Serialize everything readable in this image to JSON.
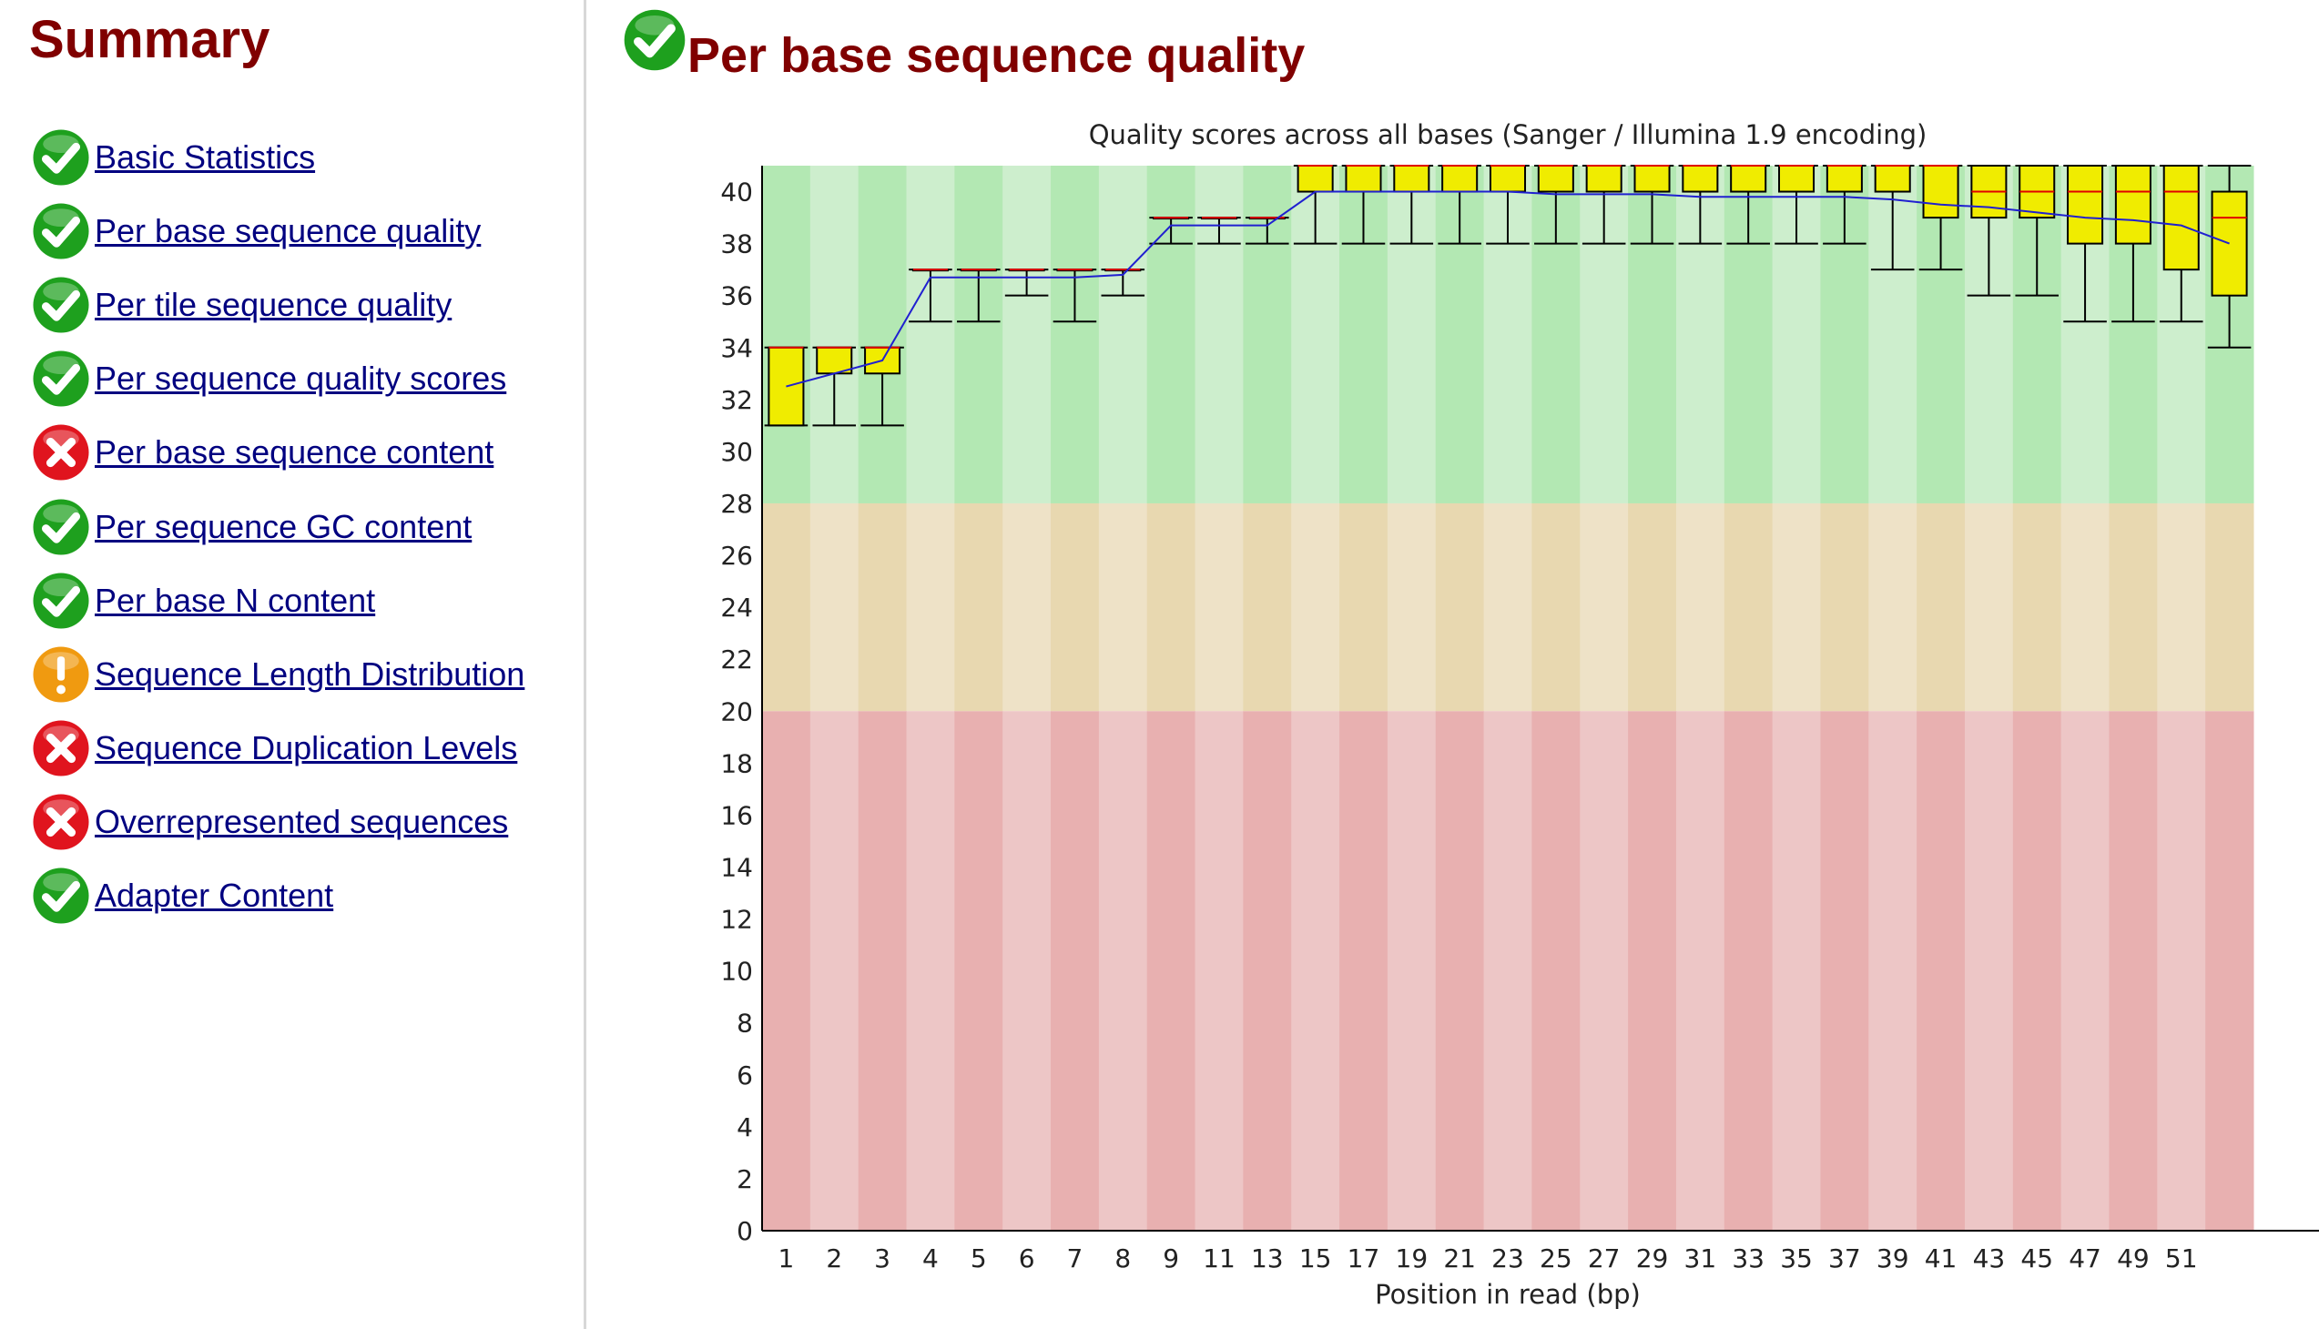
{
  "sidebar": {
    "title": "Summary",
    "modules": [
      {
        "label": "Basic Statistics",
        "status": "pass",
        "icon": "check-icon"
      },
      {
        "label": "Per base sequence quality",
        "status": "pass",
        "icon": "check-icon"
      },
      {
        "label": "Per tile sequence quality",
        "status": "pass",
        "icon": "check-icon"
      },
      {
        "label": "Per sequence quality scores",
        "status": "pass",
        "icon": "check-icon"
      },
      {
        "label": "Per base sequence content",
        "status": "fail",
        "icon": "cross-icon"
      },
      {
        "label": "Per sequence GC content",
        "status": "pass",
        "icon": "check-icon"
      },
      {
        "label": "Per base N content",
        "status": "pass",
        "icon": "check-icon"
      },
      {
        "label": "Sequence Length Distribution",
        "status": "warn",
        "icon": "exclamation-icon"
      },
      {
        "label": "Sequence Duplication Levels",
        "status": "fail",
        "icon": "cross-icon"
      },
      {
        "label": "Overrepresented sequences",
        "status": "fail",
        "icon": "cross-icon"
      },
      {
        "label": "Adapter Content",
        "status": "pass",
        "icon": "check-icon"
      }
    ]
  },
  "main": {
    "title": "Per base sequence quality",
    "status": "pass",
    "icon": "check-icon"
  },
  "colors": {
    "title": "#800000",
    "link": "#000080",
    "pass": "#1ea01e",
    "fail": "#e0141e",
    "warn": "#f09a10",
    "zone_good_a": "#b3e8b3",
    "zone_good_b": "#cdeecd",
    "zone_warn_a": "#e8d8b0",
    "zone_warn_b": "#eee2c7",
    "zone_bad_a": "#e8b0b0",
    "zone_bad_b": "#edc6c6",
    "box": "#f0ec00",
    "median": "#e00000",
    "mean": "#2020d0"
  },
  "chart_data": {
    "type": "box",
    "title": "Quality scores across all bases (Sanger / Illumina 1.9 encoding)",
    "xlabel": "Position in read (bp)",
    "ylabel": "",
    "ylim": [
      0,
      41
    ],
    "yticks": [
      0,
      2,
      4,
      6,
      8,
      10,
      12,
      14,
      16,
      18,
      20,
      22,
      24,
      26,
      28,
      30,
      32,
      34,
      36,
      38,
      40
    ],
    "xticks": [
      "1",
      "2",
      "3",
      "4",
      "5",
      "6",
      "7",
      "8",
      "9",
      "11",
      "13",
      "15",
      "17",
      "19",
      "21",
      "23",
      "25",
      "27",
      "29",
      "31",
      "33",
      "35",
      "37",
      "39",
      "41",
      "43",
      "45",
      "47",
      "49",
      "51"
    ],
    "zones": [
      {
        "name": "good",
        "from": 28,
        "to": 41
      },
      {
        "name": "warning",
        "from": 20,
        "to": 28
      },
      {
        "name": "bad",
        "from": 0,
        "to": 20
      }
    ],
    "positions": [
      {
        "x": "1",
        "q1": 31,
        "median": 34,
        "q3": 34,
        "p10": 31,
        "p90": 34,
        "mean": 32.5
      },
      {
        "x": "2",
        "q1": 33,
        "median": 34,
        "q3": 34,
        "p10": 31,
        "p90": 34,
        "mean": 33
      },
      {
        "x": "3",
        "q1": 33,
        "median": 34,
        "q3": 34,
        "p10": 31,
        "p90": 34,
        "mean": 33.5
      },
      {
        "x": "4",
        "q1": 37,
        "median": 37,
        "q3": 37,
        "p10": 35,
        "p90": 37,
        "mean": 36.7
      },
      {
        "x": "5",
        "q1": 37,
        "median": 37,
        "q3": 37,
        "p10": 35,
        "p90": 37,
        "mean": 36.7
      },
      {
        "x": "6",
        "q1": 37,
        "median": 37,
        "q3": 37,
        "p10": 36,
        "p90": 37,
        "mean": 36.7
      },
      {
        "x": "7",
        "q1": 37,
        "median": 37,
        "q3": 37,
        "p10": 35,
        "p90": 37,
        "mean": 36.7
      },
      {
        "x": "8",
        "q1": 37,
        "median": 37,
        "q3": 37,
        "p10": 36,
        "p90": 37,
        "mean": 36.8
      },
      {
        "x": "9",
        "q1": 39,
        "median": 39,
        "q3": 39,
        "p10": 38,
        "p90": 39,
        "mean": 38.7
      },
      {
        "x": "10-11",
        "q1": 39,
        "median": 39,
        "q3": 39,
        "p10": 38,
        "p90": 39,
        "mean": 38.7
      },
      {
        "x": "12-13",
        "q1": 39,
        "median": 39,
        "q3": 39,
        "p10": 38,
        "p90": 39,
        "mean": 38.7
      },
      {
        "x": "14-15",
        "q1": 40,
        "median": 41,
        "q3": 41,
        "p10": 38,
        "p90": 41,
        "mean": 40.0
      },
      {
        "x": "16-17",
        "q1": 40,
        "median": 41,
        "q3": 41,
        "p10": 38,
        "p90": 41,
        "mean": 40.0
      },
      {
        "x": "18-19",
        "q1": 40,
        "median": 41,
        "q3": 41,
        "p10": 38,
        "p90": 41,
        "mean": 40.0
      },
      {
        "x": "20-21",
        "q1": 40,
        "median": 41,
        "q3": 41,
        "p10": 38,
        "p90": 41,
        "mean": 40.0
      },
      {
        "x": "22-23",
        "q1": 40,
        "median": 41,
        "q3": 41,
        "p10": 38,
        "p90": 41,
        "mean": 40.0
      },
      {
        "x": "24-25",
        "q1": 40,
        "median": 41,
        "q3": 41,
        "p10": 38,
        "p90": 41,
        "mean": 39.9
      },
      {
        "x": "26-27",
        "q1": 40,
        "median": 41,
        "q3": 41,
        "p10": 38,
        "p90": 41,
        "mean": 39.9
      },
      {
        "x": "28-29",
        "q1": 40,
        "median": 41,
        "q3": 41,
        "p10": 38,
        "p90": 41,
        "mean": 39.9
      },
      {
        "x": "30-31",
        "q1": 40,
        "median": 41,
        "q3": 41,
        "p10": 38,
        "p90": 41,
        "mean": 39.8
      },
      {
        "x": "32-33",
        "q1": 40,
        "median": 41,
        "q3": 41,
        "p10": 38,
        "p90": 41,
        "mean": 39.8
      },
      {
        "x": "34-35",
        "q1": 40,
        "median": 41,
        "q3": 41,
        "p10": 38,
        "p90": 41,
        "mean": 39.8
      },
      {
        "x": "36-37",
        "q1": 40,
        "median": 41,
        "q3": 41,
        "p10": 38,
        "p90": 41,
        "mean": 39.8
      },
      {
        "x": "38-39",
        "q1": 40,
        "median": 41,
        "q3": 41,
        "p10": 37,
        "p90": 41,
        "mean": 39.7
      },
      {
        "x": "40-41",
        "q1": 39,
        "median": 41,
        "q3": 41,
        "p10": 37,
        "p90": 41,
        "mean": 39.5
      },
      {
        "x": "42-43",
        "q1": 39,
        "median": 40,
        "q3": 41,
        "p10": 36,
        "p90": 41,
        "mean": 39.4
      },
      {
        "x": "44-45",
        "q1": 39,
        "median": 40,
        "q3": 41,
        "p10": 36,
        "p90": 41,
        "mean": 39.2
      },
      {
        "x": "46-47",
        "q1": 38,
        "median": 40,
        "q3": 41,
        "p10": 35,
        "p90": 41,
        "mean": 39.0
      },
      {
        "x": "48-49",
        "q1": 38,
        "median": 40,
        "q3": 41,
        "p10": 35,
        "p90": 41,
        "mean": 38.9
      },
      {
        "x": "50-51",
        "q1": 37,
        "median": 40,
        "q3": 41,
        "p10": 35,
        "p90": 41,
        "mean": 38.7
      },
      {
        "x": "52",
        "q1": 36,
        "median": 39,
        "q3": 40,
        "p10": 34,
        "p90": 41,
        "mean": 38.0
      }
    ]
  }
}
